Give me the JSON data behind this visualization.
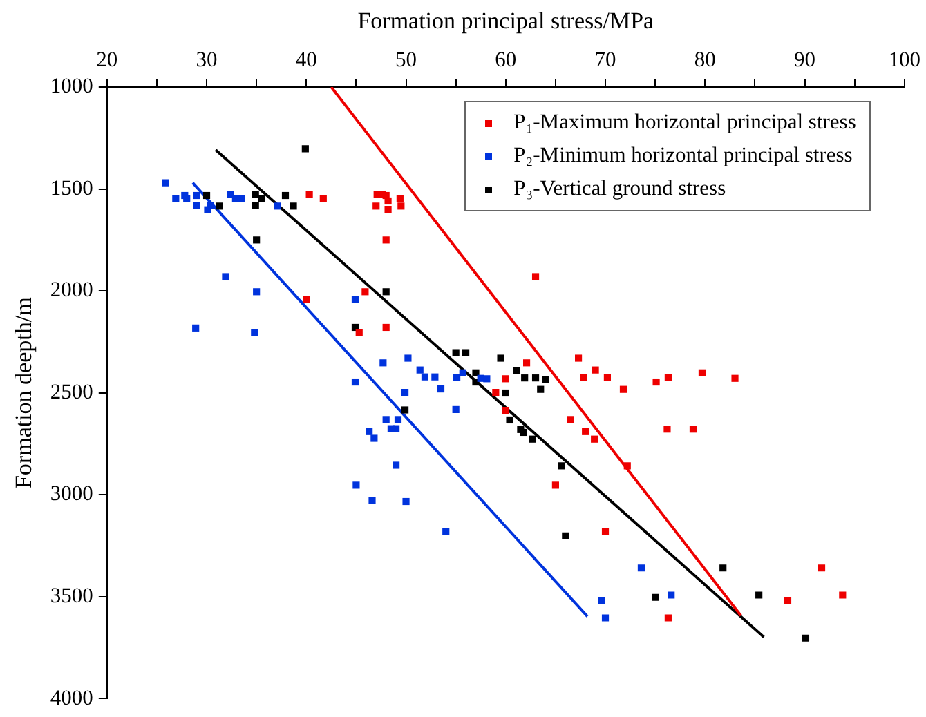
{
  "chart_data": {
    "type": "scatter",
    "xlabel": "Formation principal stress/MPa",
    "ylabel": "Formation deepth/m",
    "xlim": [
      20,
      100
    ],
    "xticks": [
      20,
      {
        "value": 25,
        "label": null
      },
      30,
      {
        "value": 35,
        "label": null
      },
      40,
      {
        "value": 45,
        "label": null
      },
      50,
      {
        "value": 55,
        "label": null
      },
      60,
      {
        "value": 65,
        "label": null
      },
      70,
      {
        "value": 75,
        "label": null
      },
      80,
      {
        "value": 85,
        "label": null
      },
      90,
      {
        "value": 95,
        "label": null
      },
      100
    ],
    "ylim": [
      4000,
      1000
    ],
    "yticks": [
      1000,
      1500,
      2000,
      2500,
      3000,
      3500,
      4000
    ],
    "grid": false,
    "legend": "top right",
    "marker": "square",
    "series": [
      {
        "name": "P₁-Maximum horizontal principal stress",
        "color": "#ee0000",
        "x": [
          63.0,
          62.1,
          67.3,
          67.8,
          69.0,
          70.2,
          71.8,
          75.1,
          76.3,
          79.7,
          83.0,
          66.5,
          68.0,
          68.9,
          76.2,
          78.8,
          72.2,
          65.0,
          70.0,
          76.3,
          88.3,
          91.7,
          93.8,
          60.0,
          59.0,
          60.0,
          40.3,
          41.7,
          47.1,
          47.6,
          48.0,
          48.2,
          47.0,
          48.2,
          49.4,
          49.5,
          48.0,
          40.0,
          45.9,
          45.3,
          48.0
        ],
        "values": [
          1930,
          2353,
          2330,
          2424,
          2388,
          2424,
          2483,
          2447,
          2424,
          2402,
          2429,
          2631,
          2690,
          2727,
          2678,
          2678,
          2858,
          2953,
          3182,
          3604,
          3521,
          3359,
          3492,
          2431,
          2498,
          2586,
          1526,
          1548,
          1526,
          1526,
          1532,
          1559,
          1584,
          1600,
          1548,
          1584,
          1750,
          2043,
          2004,
          2206,
          2179
        ]
      },
      {
        "name": "P₂-Minimum horizontal principal stress",
        "color": "#0033dd",
        "x": [
          25.9,
          26.9,
          27.8,
          28.0,
          29.0,
          29.0,
          30.1,
          30.4,
          32.4,
          32.9,
          33.5,
          37.1,
          31.9,
          35.0,
          28.9,
          34.8,
          44.9,
          47.7,
          50.2,
          51.4,
          51.9,
          52.9,
          53.5,
          44.9,
          49.9,
          48.0,
          49.2,
          46.3,
          46.8,
          48.5,
          49.0,
          55.1,
          55.7,
          57.5,
          58.1,
          55.0,
          49.0,
          50.0,
          45.0,
          46.6,
          54.0,
          73.6,
          69.6,
          70.0,
          76.6
        ],
        "values": [
          1470,
          1548,
          1532,
          1548,
          1532,
          1580,
          1602,
          1580,
          1526,
          1548,
          1548,
          1584,
          1930,
          2004,
          2182,
          2206,
          2043,
          2353,
          2330,
          2388,
          2422,
          2422,
          2481,
          2447,
          2498,
          2631,
          2631,
          2690,
          2723,
          2676,
          2676,
          2424,
          2402,
          2429,
          2431,
          2582,
          2855,
          3033,
          2953,
          3027,
          3182,
          3359,
          3521,
          3604,
          3492
        ]
      },
      {
        "name": "P₃-Vertical ground stress",
        "color": "#000000",
        "x": [
          39.9,
          30.0,
          31.3,
          34.9,
          35.5,
          34.9,
          37.9,
          38.7,
          35.0,
          48.0,
          44.9,
          49.9,
          55.0,
          56.0,
          57.0,
          57.0,
          59.5,
          61.1,
          61.9,
          63.0,
          64.0,
          63.5,
          60.0,
          60.4,
          61.5,
          61.8,
          62.7,
          65.6,
          66.0,
          81.8,
          85.4,
          75.0,
          90.1
        ],
        "values": [
          1303,
          1532,
          1584,
          1526,
          1548,
          1580,
          1532,
          1584,
          1750,
          2004,
          2179,
          2584,
          2303,
          2303,
          2402,
          2447,
          2330,
          2390,
          2427,
          2427,
          2434,
          2483,
          2501,
          2633,
          2680,
          2694,
          2727,
          2858,
          3202,
          3359,
          3492,
          3503,
          3703
        ]
      },
      {
        "color": "#ee0000",
        "type": "line",
        "marker": "none",
        "x": [
          42.5,
          83.6
        ],
        "values": [
          1000,
          3593
        ]
      },
      {
        "color": "#0033dd",
        "type": "line",
        "marker": "none",
        "x": [
          28.6,
          68.2
        ],
        "values": [
          1470,
          3597
        ]
      },
      {
        "color": "#000000",
        "type": "line",
        "marker": "none",
        "x": [
          30.9,
          85.9
        ],
        "values": [
          1308,
          3698
        ]
      }
    ]
  }
}
